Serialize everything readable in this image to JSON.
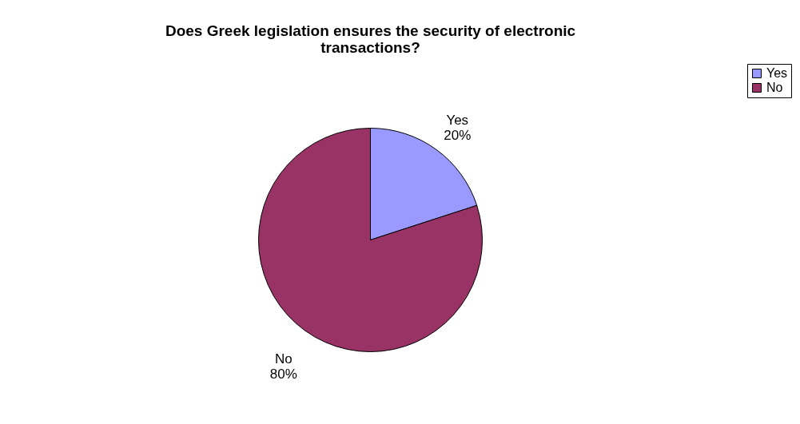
{
  "chart_data": {
    "type": "pie",
    "title": "Does Greek legislation ensures the security of electronic transactions?",
    "categories": [
      "Yes",
      "No"
    ],
    "values": [
      20,
      80
    ],
    "value_labels": [
      "20%",
      "80%"
    ],
    "colors": [
      "#9999ff",
      "#993366"
    ],
    "legend": "right"
  }
}
